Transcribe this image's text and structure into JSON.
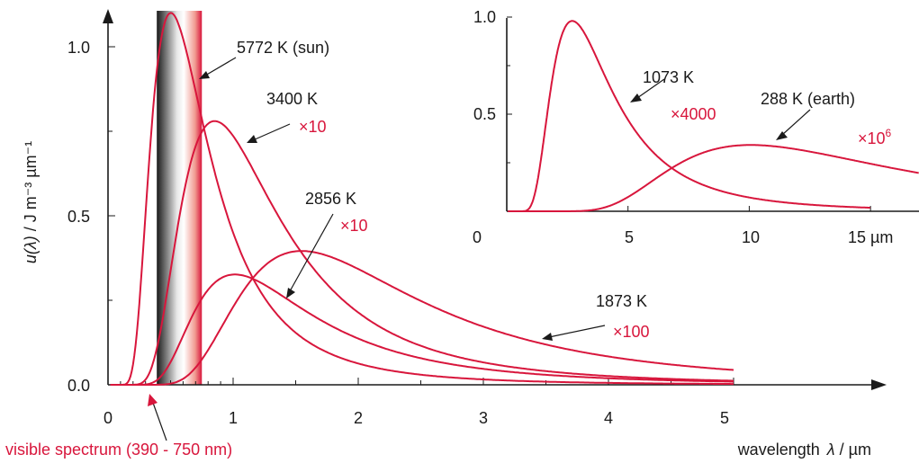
{
  "chart_data": [
    {
      "type": "line",
      "xlabel_prefix": "wavelength",
      "xlabel_symbol": "λ",
      "xlabel_unit": " / µm",
      "ylabel_func": "u(λ)",
      "ylabel_unit": " /  J m⁻³ µm⁻¹",
      "xlim": [
        0,
        5
      ],
      "ylim": [
        0,
        1.0
      ],
      "x_ticks": [
        "0",
        "1",
        "2",
        "3",
        "4",
        "5"
      ],
      "y_ticks": [
        "0.0",
        "0.5",
        "1.0"
      ],
      "visible_band": {
        "from": 0.39,
        "to": 0.75,
        "label": "visible spectrum (390 - 750 nm)"
      },
      "series": [
        {
          "name": "5772 K  (sun)",
          "temperature": 5772,
          "scale": 1,
          "scale_label": ""
        },
        {
          "name": "3400 K",
          "temperature": 3400,
          "scale": 10,
          "scale_label": "×10"
        },
        {
          "name": "2856 K",
          "temperature": 2856,
          "scale": 10,
          "scale_label": "×10"
        },
        {
          "name": "1873 K",
          "temperature": 1873,
          "scale": 100,
          "scale_label": "×100"
        }
      ]
    },
    {
      "type": "line",
      "xlim": [
        0,
        17
      ],
      "ylim": [
        0,
        1.0
      ],
      "x_ticks": [
        "0",
        "5",
        "10",
        "15 µm"
      ],
      "y_ticks": [
        "0.5",
        "1.0"
      ],
      "series": [
        {
          "name": "1073 K",
          "temperature": 1073,
          "scale": 4000,
          "scale_label": "×4000"
        },
        {
          "name": "288 K  (earth)",
          "temperature": 288,
          "scale": 1000000,
          "scale_label_base": "×10",
          "scale_label_exp": "6"
        }
      ]
    }
  ]
}
